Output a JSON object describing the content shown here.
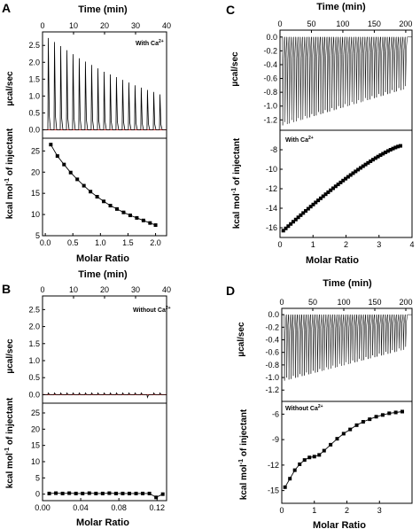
{
  "chart_data": [
    {
      "type": "line",
      "panel": "A",
      "top": {
        "xlabel": "Time (min)",
        "xlim": [
          0,
          40
        ],
        "xticks": [
          0,
          10,
          20,
          30,
          40
        ],
        "ylabel": "µcal/sec",
        "ylim": [
          -0.25,
          2.9
        ],
        "yticks": [
          0.0,
          0.5,
          1.0,
          1.5,
          2.0,
          2.5
        ],
        "annotation": "With Ca2+",
        "injection_times": [
          1.7,
          3.7,
          5.7,
          7.7,
          9.7,
          11.7,
          13.7,
          15.7,
          17.7,
          19.7,
          21.7,
          23.7,
          25.7,
          27.7,
          29.7,
          31.7,
          33.7,
          35.7,
          37.7
        ],
        "injection_peaks": [
          2.72,
          2.6,
          2.48,
          2.36,
          2.24,
          2.12,
          2.02,
          1.92,
          1.82,
          1.72,
          1.64,
          1.56,
          1.48,
          1.4,
          1.32,
          1.25,
          1.18,
          1.12,
          1.05
        ],
        "baseline_color": "#cc2222"
      },
      "bottom": {
        "xlabel": "Molar Ratio",
        "xlim": [
          -0.05,
          2.2
        ],
        "xticks": [
          0.0,
          0.5,
          1.0,
          1.5,
          2.0
        ],
        "ylabel": "kcal mol-1 of injectant",
        "ylim": [
          5,
          28
        ],
        "yticks": [
          5,
          10,
          15,
          20,
          25
        ],
        "x": [
          0.1,
          0.22,
          0.34,
          0.46,
          0.58,
          0.7,
          0.82,
          0.94,
          1.06,
          1.18,
          1.3,
          1.42,
          1.54,
          1.66,
          1.78,
          1.9,
          2.0
        ],
        "y": [
          26.5,
          23.8,
          21.8,
          19.9,
          18.3,
          16.8,
          15.4,
          14.2,
          13.1,
          12.1,
          11.3,
          10.5,
          9.8,
          9.2,
          8.6,
          8.0,
          7.5
        ],
        "fit": true
      }
    },
    {
      "type": "line",
      "panel": "B",
      "top": {
        "xlabel": "Time (min)",
        "xlim": [
          0,
          40
        ],
        "xticks": [
          0,
          10,
          20,
          30,
          40
        ],
        "ylabel": "µcal/sec",
        "ylim": [
          -0.25,
          2.9
        ],
        "yticks": [
          0.0,
          0.5,
          1.0,
          1.5,
          2.0,
          2.5
        ],
        "annotation": "Without Ca2+",
        "injection_times": [
          1.7,
          3.7,
          5.7,
          7.7,
          9.7,
          11.7,
          13.7,
          15.7,
          17.7,
          19.7,
          21.7,
          23.7,
          25.7,
          27.7,
          29.7,
          31.7,
          33.7,
          35.7,
          37.7
        ],
        "injection_peaks": [
          0.05,
          0.05,
          0.05,
          0.05,
          0.05,
          0.05,
          0.05,
          0.05,
          0.05,
          0.05,
          0.05,
          0.05,
          0.05,
          0.05,
          0.05,
          0.05,
          -0.08,
          0.05,
          0.05
        ],
        "baseline_color": "#cc2222"
      },
      "bottom": {
        "xlabel": "Molar Ratio",
        "xlim": [
          0.0,
          0.13
        ],
        "xticks": [
          0.0,
          0.04,
          0.08,
          0.12
        ],
        "ylabel": "kcal mol-1 of injectant",
        "ylim": [
          -2,
          28
        ],
        "yticks": [
          0,
          5,
          10,
          15,
          20,
          25
        ],
        "x": [
          0.007,
          0.014,
          0.021,
          0.028,
          0.035,
          0.042,
          0.049,
          0.056,
          0.063,
          0.07,
          0.077,
          0.084,
          0.091,
          0.098,
          0.105,
          0.112,
          0.119,
          0.126
        ],
        "y": [
          0.2,
          0.3,
          0.2,
          0.3,
          0.2,
          0.2,
          0.3,
          0.2,
          0.2,
          0.3,
          0.2,
          0.2,
          0.2,
          0.2,
          0.2,
          0.2,
          -1.0,
          0.0
        ],
        "fit": false
      }
    },
    {
      "type": "line",
      "panel": "C",
      "top": {
        "xlabel": "Time (min)",
        "xlim": [
          0,
          210
        ],
        "xticks": [
          0,
          50,
          100,
          150,
          200
        ],
        "ylabel": "µcal/sec",
        "ylim": [
          -1.35,
          0.1
        ],
        "yticks": [
          0.0,
          -0.2,
          -0.4,
          -0.6,
          -0.8,
          -1.0,
          -1.2
        ],
        "injection_start": 4,
        "injection_step": 3.55,
        "injection_count": 56,
        "peak_first": -1.28,
        "peak_last": -0.75
      },
      "bottom": {
        "xlabel": "Molar Ratio",
        "xlim": [
          0,
          4
        ],
        "xticks": [
          0,
          1,
          2,
          3,
          4
        ],
        "ylabel": "kcal mol-1 of injectant",
        "ylim": [
          -17,
          -6
        ],
        "yticks": [
          -8,
          -10,
          -12,
          -14,
          -16
        ],
        "annotation": "With Ca2+",
        "x_start": 0.1,
        "x_end": 3.65,
        "count": 48,
        "y_start": -16.3,
        "y_end": -7.6,
        "fit": true
      }
    },
    {
      "type": "line",
      "panel": "D",
      "top": {
        "xlabel": "Time (min)",
        "xlim": [
          0,
          210
        ],
        "xticks": [
          0,
          50,
          100,
          150,
          200
        ],
        "ylabel": "µcal/sec",
        "ylim": [
          -1.38,
          0.1
        ],
        "yticks": [
          0.0,
          -0.2,
          -0.4,
          -0.6,
          -0.8,
          -1.0,
          -1.2
        ],
        "injection_start": 4,
        "injection_step": 3.55,
        "injection_count": 56,
        "peak_first": -1.05,
        "peak_last": -0.55
      },
      "bottom": {
        "xlabel": "Molar Ratio",
        "xlim": [
          0,
          4
        ],
        "xticks": [
          0,
          1,
          2,
          3
        ],
        "ylabel": "kcal mol-1 of injectant",
        "ylim": [
          -16.5,
          -4.5
        ],
        "yticks": [
          -6,
          -9,
          -12,
          -15
        ],
        "annotation": "Without Ca2+",
        "x": [
          0.1,
          0.25,
          0.4,
          0.55,
          0.7,
          0.85,
          1.0,
          1.15,
          1.3,
          1.5,
          1.7,
          1.9,
          2.1,
          2.3,
          2.5,
          2.7,
          2.9,
          3.1,
          3.3,
          3.5,
          3.7
        ],
        "y": [
          -14.6,
          -13.6,
          -12.6,
          -11.9,
          -11.4,
          -11.1,
          -11.0,
          -10.8,
          -10.3,
          -9.6,
          -8.9,
          -8.3,
          -7.8,
          -7.3,
          -6.9,
          -6.6,
          -6.3,
          -6.1,
          -5.9,
          -5.8,
          -5.7
        ],
        "fit": false
      }
    }
  ],
  "labels": {
    "panel_a": "A",
    "panel_b": "B",
    "panel_c": "C",
    "panel_d": "D",
    "time_axis": "Time (min)",
    "molar_ratio": "Molar Ratio",
    "ucal": "µcal/sec",
    "kcal_prefix": "kcal mol",
    "kcal_sup": "-1",
    "kcal_suffix": " of injectant",
    "with_ca": "With Ca",
    "without_ca": "Without Ca",
    "ion_charge": "2+"
  }
}
